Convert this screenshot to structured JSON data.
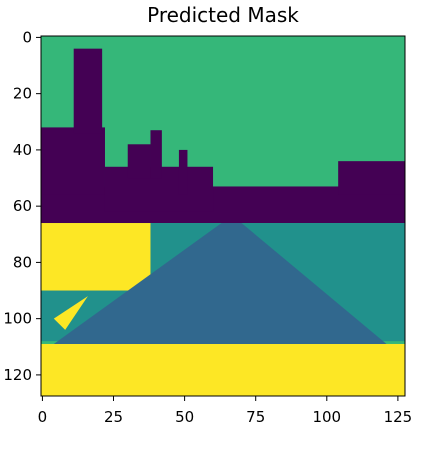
{
  "chart_data": {
    "type": "heatmap",
    "title": "Predicted Mask",
    "xlabel": "",
    "ylabel": "",
    "xlim": [
      -0.5,
      127.5
    ],
    "ylim": [
      127.5,
      -0.5
    ],
    "xticks": [
      0,
      25,
      50,
      75,
      100,
      125
    ],
    "yticks": [
      0,
      20,
      40,
      60,
      80,
      100,
      120
    ],
    "xtick_labels": [
      "0",
      "25",
      "50",
      "75",
      "100",
      "125"
    ],
    "ytick_labels": [
      "0",
      "20",
      "40",
      "60",
      "80",
      "100",
      "120"
    ],
    "grid": false,
    "legend": "none",
    "colormap": "viridis",
    "classes": [
      {
        "id": 0,
        "color": "#440154"
      },
      {
        "id": 1,
        "color": "#31688e"
      },
      {
        "id": 2,
        "color": "#35b779"
      },
      {
        "id": 3,
        "color": "#fde725"
      },
      {
        "id": 4,
        "color": "#21918c"
      }
    ],
    "regions": [
      {
        "class": 2,
        "x": [
          -0.5,
          127.5
        ],
        "y": [
          -0.5,
          127.5
        ]
      },
      {
        "class": 0,
        "x": [
          -0.5,
          127.5
        ],
        "y": [
          53,
          66
        ]
      },
      {
        "class": 0,
        "x": [
          -0.5,
          22
        ],
        "y": [
          32,
          56
        ]
      },
      {
        "class": 0,
        "x": [
          11,
          21
        ],
        "y": [
          4,
          34
        ]
      },
      {
        "class": 0,
        "x": [
          22,
          60
        ],
        "y": [
          46,
          62
        ]
      },
      {
        "class": 0,
        "x": [
          30,
          38
        ],
        "y": [
          38,
          50
        ]
      },
      {
        "class": 0,
        "x": [
          38,
          42
        ],
        "y": [
          33,
          50
        ]
      },
      {
        "class": 0,
        "x": [
          48,
          51
        ],
        "y": [
          40,
          56
        ]
      },
      {
        "class": 0,
        "x": [
          104,
          127.5
        ],
        "y": [
          44,
          56
        ]
      },
      {
        "class": 4,
        "x": [
          -0.5,
          127.5
        ],
        "y": [
          66,
          108
        ]
      },
      {
        "class": 3,
        "x": [
          -0.5,
          38
        ],
        "y": [
          66,
          90
        ]
      },
      {
        "class": 3,
        "x": [
          -0.5,
          127.5
        ],
        "y": [
          109,
          127.5
        ]
      }
    ],
    "polygons": [
      {
        "class": 1,
        "points": [
          [
            4,
            109
          ],
          [
            63,
            66
          ],
          [
            70,
            66
          ],
          [
            121,
            109
          ]
        ]
      },
      {
        "class": 3,
        "points": [
          [
            4,
            100
          ],
          [
            16,
            92
          ],
          [
            8,
            104
          ]
        ]
      }
    ]
  }
}
